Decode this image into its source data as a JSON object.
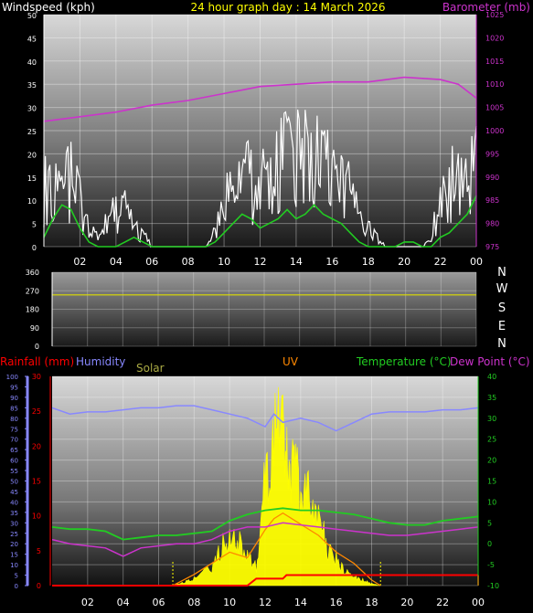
{
  "colors": {
    "wind": "#ffffff",
    "wind_avg": "#22cc22",
    "barometer": "#cc33cc",
    "wind_dir": "#dddd00",
    "rain": "#ff0000",
    "humidity": "#8888ff",
    "solar": "#ffff00",
    "solar_max": "#ffee00",
    "uv": "#ff8800",
    "temperature": "#22cc22",
    "dew_point": "#cc33cc",
    "left_axis_text": "#ffffff",
    "right_axis_text": "#cc33cc"
  },
  "chart_data": [
    {
      "type": "line",
      "title": "24 hour graph day : 14 March 2026",
      "ylabel_left": "Windspeed (kph)",
      "ylabel_right": "Barometer (mb)",
      "x_ticks": [
        "02",
        "04",
        "06",
        "08",
        "10",
        "12",
        "14",
        "16",
        "18",
        "20",
        "22",
        "00"
      ],
      "y_left_range": [
        0,
        50
      ],
      "y_left_ticks": [
        "0",
        "5",
        "10",
        "15",
        "20",
        "25",
        "30",
        "35",
        "40",
        "45",
        "50"
      ],
      "y_right_range": [
        975,
        1025
      ],
      "y_right_ticks": [
        "975",
        "980",
        "985",
        "990",
        "995",
        "1000",
        "1005",
        "1010",
        "1015",
        "1020",
        "1025"
      ],
      "series": [
        {
          "key": "gust",
          "x": [
            0,
            0.5,
            1,
            1.5,
            2,
            2.5,
            3,
            3.5,
            4,
            4.5,
            5,
            5.5,
            6,
            6.5,
            7,
            7.5,
            8,
            8.5,
            9,
            9.5,
            10,
            10.5,
            11,
            11.5,
            12,
            12.5,
            13,
            13.5,
            14,
            14.5,
            15,
            15.5,
            16,
            16.5,
            17,
            17.5,
            18,
            18.5,
            19,
            19.5,
            20,
            20.5,
            21,
            21.5,
            22,
            22.5,
            23,
            23.5,
            24
          ],
          "values": [
            14,
            12,
            15,
            16,
            10,
            4,
            2,
            6,
            8,
            9,
            4,
            3,
            0,
            0,
            0,
            0,
            0,
            0,
            0,
            4,
            12,
            14,
            16,
            15,
            13,
            18,
            20,
            22,
            19,
            24,
            20,
            18,
            16,
            14,
            12,
            6,
            4,
            2,
            0,
            0,
            0,
            0,
            0,
            2,
            12,
            16,
            15,
            18,
            26
          ]
        },
        {
          "key": "wind_avg",
          "x": [
            0,
            0.5,
            1,
            1.5,
            2,
            2.5,
            3,
            3.5,
            4,
            4.5,
            5,
            5.5,
            6,
            6.5,
            7,
            7.5,
            8,
            8.5,
            9,
            9.5,
            10,
            10.5,
            11,
            11.5,
            12,
            12.5,
            13,
            13.5,
            14,
            14.5,
            15,
            15.5,
            16,
            16.5,
            17,
            17.5,
            18,
            18.5,
            19,
            19.5,
            20,
            20.5,
            21,
            21.5,
            22,
            22.5,
            23,
            23.5,
            24
          ],
          "values": [
            2,
            6,
            9,
            8,
            4,
            1,
            0,
            0,
            0,
            1,
            2,
            1,
            0,
            0,
            0,
            0,
            0,
            0,
            0,
            1,
            3,
            5,
            7,
            6,
            4,
            5,
            6,
            8,
            6,
            7,
            9,
            7,
            6,
            5,
            3,
            1,
            0,
            0,
            0,
            0,
            1,
            1,
            0,
            0,
            2,
            3,
            5,
            7,
            11
          ]
        },
        {
          "key": "barometer",
          "x": [
            0,
            2,
            4,
            6,
            8,
            10,
            12,
            14,
            16,
            18,
            20,
            22,
            23,
            24
          ],
          "values": [
            1002,
            1003,
            1004,
            1005.5,
            1006.5,
            1008,
            1009.5,
            1010,
            1010.5,
            1010.5,
            1011.5,
            1011,
            1010,
            1007
          ]
        }
      ]
    },
    {
      "type": "line",
      "ylabel_right_letters": [
        "N",
        "W",
        "S",
        "E",
        "N"
      ],
      "y_range": [
        0,
        360
      ],
      "y_ticks": [
        "0",
        "90",
        "180",
        "270",
        "360"
      ],
      "series": [
        {
          "key": "wind_dir",
          "x": [
            0,
            24
          ],
          "values": [
            250,
            250
          ]
        }
      ]
    },
    {
      "type": "area",
      "legend": [
        "Rainfall (mm)",
        "Humidity",
        "Solar",
        "UV",
        "Temperature (°C)",
        "Dew Point (°C)"
      ],
      "x_ticks": [
        "02",
        "04",
        "06",
        "08",
        "10",
        "12",
        "14",
        "16",
        "18",
        "20",
        "22",
        "00"
      ],
      "humidity_range": [
        0,
        100
      ],
      "humidity_ticks": [
        "0",
        "5",
        "10",
        "15",
        "20",
        "25",
        "30",
        "35",
        "40",
        "45",
        "50",
        "55",
        "60",
        "65",
        "70",
        "75",
        "80",
        "85",
        "90",
        "95",
        "100"
      ],
      "rain_range": [
        0,
        30
      ],
      "rain_ticks": [
        "0",
        "5",
        "10",
        "15",
        "20",
        "25",
        "30"
      ],
      "temp_range": [
        -10,
        40
      ],
      "temp_ticks": [
        "-10",
        "-5",
        "0",
        "5",
        "10",
        "15",
        "20",
        "25",
        "30",
        "35",
        "40"
      ],
      "series": [
        {
          "key": "humidity",
          "x": [
            0,
            1,
            2,
            3,
            4,
            5,
            6,
            7,
            8,
            9,
            10,
            11,
            12,
            12.5,
            13,
            14,
            15,
            16,
            17,
            18,
            19,
            20,
            21,
            22,
            23,
            24
          ],
          "values": [
            85,
            82,
            83,
            83,
            84,
            85,
            85,
            86,
            86,
            84,
            82,
            80,
            76,
            82,
            78,
            80,
            78,
            74,
            78,
            82,
            83,
            83,
            83,
            84,
            84,
            85
          ]
        },
        {
          "key": "temperature",
          "x": [
            0,
            1,
            2,
            3,
            4,
            5,
            6,
            7,
            8,
            9,
            10,
            11,
            12,
            13,
            14,
            15,
            16,
            17,
            18,
            19,
            20,
            21,
            22,
            23,
            24
          ],
          "values": [
            4,
            3.5,
            3.5,
            3,
            1,
            1.5,
            2,
            2,
            2.5,
            3,
            5.5,
            7,
            8,
            8.5,
            8,
            8,
            7.5,
            7,
            6,
            5,
            4.5,
            4.5,
            5.5,
            6,
            6.5
          ]
        },
        {
          "key": "dew_point",
          "x": [
            0,
            1,
            2,
            3,
            4,
            5,
            6,
            7,
            8,
            9,
            10,
            11,
            12,
            13,
            14,
            15,
            16,
            17,
            18,
            19,
            20,
            21,
            22,
            23,
            24
          ],
          "values": [
            1,
            0,
            -0.5,
            -1,
            -3,
            -1,
            -0.5,
            0,
            0,
            1,
            3,
            4,
            4,
            5,
            4.5,
            4,
            3.5,
            3,
            2.5,
            2,
            2,
            2.5,
            3,
            3.5,
            4
          ]
        },
        {
          "key": "rain",
          "x": [
            0,
            11,
            11.5,
            13,
            13.2,
            24
          ],
          "values": [
            0,
            0,
            1,
            1,
            1.5,
            1.5
          ]
        },
        {
          "key": "solar",
          "x": [
            6.8,
            7.5,
            8,
            9,
            9.5,
            10,
            10.5,
            11,
            11.5,
            12,
            12.5,
            13,
            13.3,
            13.7,
            14,
            14.5,
            15,
            15.5,
            16,
            16.5,
            17,
            17.5,
            18,
            18.5
          ],
          "values": [
            0,
            2,
            4,
            10,
            20,
            30,
            25,
            15,
            10,
            60,
            80,
            90,
            65,
            80,
            50,
            55,
            40,
            20,
            15,
            8,
            5,
            3,
            1,
            0
          ]
        },
        {
          "key": "uv",
          "x": [
            6.8,
            8,
            9,
            10,
            11,
            12,
            12.5,
            13,
            13.5,
            14,
            15,
            16,
            17,
            18,
            18.5
          ],
          "values": [
            0,
            1,
            2,
            3,
            2.5,
            5,
            6,
            6.5,
            6,
            5.5,
            4.5,
            3,
            2,
            0.5,
            0
          ]
        }
      ]
    }
  ]
}
